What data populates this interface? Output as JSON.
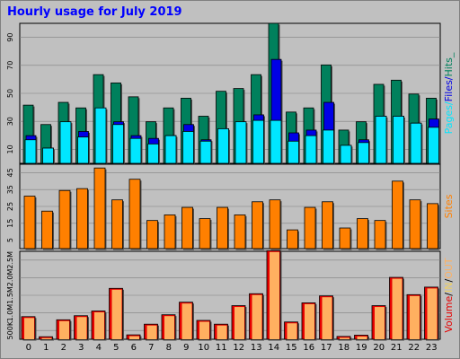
{
  "title": "Hourly usage for July 2019",
  "colors": {
    "hits": "#00805c",
    "files": "#0000e6",
    "pages": "#00e6ff",
    "sites": "#ff8000",
    "volume": "#e60000",
    "in": "#ffb060",
    "out": "#f0d060",
    "sides_sep": "#000000"
  },
  "chart_data": [
    {
      "type": "bar",
      "panel": "hits-files-pages",
      "categories": [
        "0",
        "1",
        "2",
        "3",
        "4",
        "5",
        "6",
        "7",
        "8",
        "9",
        "10",
        "11",
        "12",
        "13",
        "14",
        "15",
        "16",
        "17",
        "18",
        "19",
        "20",
        "21",
        "22",
        "23"
      ],
      "ylim": [
        0,
        101
      ],
      "yticks": [
        "10",
        "30",
        "50",
        "70",
        "90"
      ],
      "side_label_parts": [
        "Pages",
        "Files",
        "Hits"
      ],
      "side_label_seps": [
        "/",
        "/",
        "_"
      ],
      "series": [
        {
          "name": "Hits",
          "values": [
            42,
            28,
            44,
            40,
            64,
            58,
            48,
            30,
            40,
            47,
            34,
            52,
            54,
            64,
            101,
            37,
            40,
            71,
            24,
            30,
            57,
            60,
            50,
            47
          ]
        },
        {
          "name": "Files",
          "values": [
            20,
            11,
            22,
            23,
            35,
            30,
            20,
            18,
            20,
            28,
            17,
            25,
            24,
            35,
            75,
            22,
            24,
            44,
            13,
            17,
            34,
            34,
            29,
            32
          ]
        },
        {
          "name": "Pages",
          "values": [
            17,
            11,
            30,
            19,
            40,
            28,
            18,
            14,
            20,
            23,
            16,
            25,
            30,
            31,
            31,
            16,
            20,
            24,
            13,
            15,
            34,
            34,
            29,
            26
          ]
        }
      ]
    },
    {
      "type": "bar",
      "panel": "sites",
      "categories": [
        "0",
        "1",
        "2",
        "3",
        "4",
        "5",
        "6",
        "7",
        "8",
        "9",
        "10",
        "11",
        "12",
        "13",
        "14",
        "15",
        "16",
        "17",
        "18",
        "19",
        "20",
        "21",
        "22",
        "23"
      ],
      "ylim": [
        0,
        45
      ],
      "yticks": [
        "5",
        "15",
        "25",
        "35",
        "45"
      ],
      "side_label": "Sites",
      "series": [
        {
          "name": "Sites",
          "values": [
            28,
            20,
            31,
            32,
            43,
            26,
            37,
            15,
            18,
            22,
            16,
            22,
            18,
            25,
            26,
            10,
            22,
            25,
            11,
            16,
            15,
            36,
            26,
            24
          ]
        }
      ]
    },
    {
      "type": "bar",
      "panel": "volume",
      "categories": [
        "0",
        "1",
        "2",
        "3",
        "4",
        "5",
        "6",
        "7",
        "8",
        "9",
        "10",
        "11",
        "12",
        "13",
        "14",
        "15",
        "16",
        "17",
        "18",
        "19",
        "20",
        "21",
        "22",
        "23"
      ],
      "ylim": [
        0,
        2.8
      ],
      "yticks": [
        "500K",
        "1.0M",
        "1.5M",
        "2.0M",
        "2.5M"
      ],
      "side_label_parts": [
        "Volume",
        "IN",
        "OUT"
      ],
      "side_label_seps": [
        "/",
        "/"
      ],
      "series": [
        {
          "name": "Volume",
          "values": [
            0.72,
            0.08,
            0.62,
            0.75,
            0.9,
            1.62,
            0.14,
            0.48,
            0.78,
            1.18,
            0.6,
            0.48,
            1.07,
            1.45,
            2.82,
            0.55,
            1.16,
            1.38,
            0.09,
            0.13,
            1.07,
            1.97,
            1.42,
            1.66
          ]
        }
      ]
    }
  ]
}
